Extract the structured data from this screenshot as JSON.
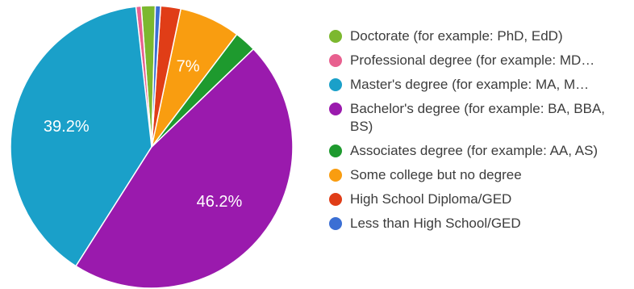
{
  "chart_data": {
    "type": "pie",
    "slices": [
      {
        "label": "Doctorate (for example: PhD, EdD)",
        "value": 1.6,
        "color": "#7cb82f",
        "data_label": ""
      },
      {
        "label": "Professional degree (for example: MD…",
        "value": 0.6,
        "color": "#e8608f",
        "data_label": ""
      },
      {
        "label": "Master's degree (for example: MA, M…",
        "value": 39.2,
        "color": "#1aa0c9",
        "data_label": "39.2%"
      },
      {
        "label": "Bachelor's degree (for example: BA, BBA, BS)",
        "value": 46.2,
        "color": "#9a1aad",
        "data_label": "46.2%"
      },
      {
        "label": "Associates degree (for example: AA, AS)",
        "value": 2.5,
        "color": "#1e9a2e",
        "data_label": ""
      },
      {
        "label": "Some college but no degree",
        "value": 7.0,
        "color": "#f99d10",
        "data_label": "7%"
      },
      {
        "label": "High School Diploma/GED",
        "value": 2.3,
        "color": "#e03d17",
        "data_label": ""
      },
      {
        "label": "Less than High School/GED",
        "value": 0.6,
        "color": "#3b6fd4",
        "data_label": ""
      }
    ],
    "start_angle_deg": 88.5,
    "direction": "counterclockwise",
    "legend_position": "right"
  }
}
